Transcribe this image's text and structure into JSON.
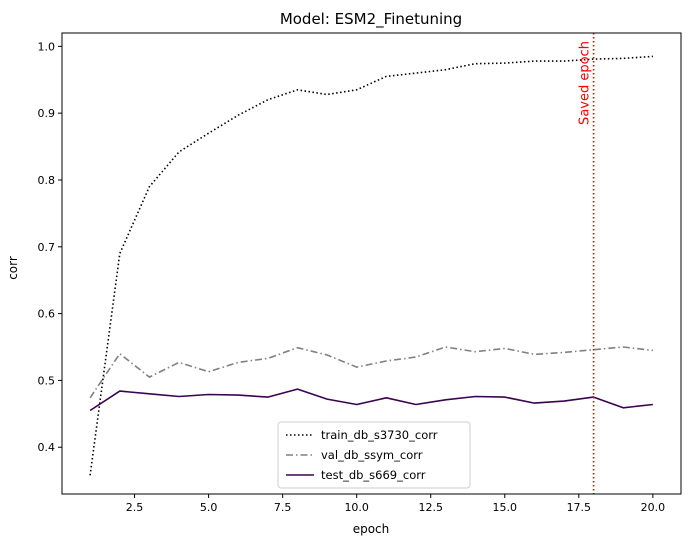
{
  "chart_data": {
    "type": "line",
    "title": "Model: ESM2_Finetuning",
    "xlabel": "epoch",
    "ylabel": "corr",
    "xlim": [
      0.05,
      20.95
    ],
    "ylim": [
      0.33,
      1.02
    ],
    "xticks": [
      2.5,
      5.0,
      7.5,
      10.0,
      12.5,
      15.0,
      17.5,
      20.0
    ],
    "xtick_labels": [
      "2.5",
      "5.0",
      "7.5",
      "10.0",
      "12.5",
      "15.0",
      "17.5",
      "20.0"
    ],
    "yticks": [
      0.4,
      0.5,
      0.6,
      0.7,
      0.8,
      0.9,
      1.0
    ],
    "ytick_labels": [
      "0.4",
      "0.5",
      "0.6",
      "0.7",
      "0.8",
      "0.9",
      "1.0"
    ],
    "grid": false,
    "legend_position": "bottom-center",
    "x": [
      1,
      2,
      3,
      4,
      5,
      6,
      7,
      8,
      9,
      10,
      11,
      12,
      13,
      14,
      15,
      16,
      17,
      18,
      19,
      20
    ],
    "series": [
      {
        "name": "train_db_s3730_corr",
        "color": "#000000",
        "dash": "dotted",
        "values": [
          0.358,
          0.69,
          0.79,
          0.842,
          0.87,
          0.897,
          0.92,
          0.935,
          0.928,
          0.935,
          0.955,
          0.96,
          0.965,
          0.974,
          0.975,
          0.978,
          0.978,
          0.981,
          0.982,
          0.985
        ]
      },
      {
        "name": "val_db_ssym_corr",
        "color": "#808080",
        "dash": "dashdot",
        "values": [
          0.474,
          0.54,
          0.505,
          0.527,
          0.513,
          0.527,
          0.533,
          0.549,
          0.538,
          0.52,
          0.529,
          0.535,
          0.55,
          0.543,
          0.548,
          0.539,
          0.542,
          0.546,
          0.55,
          0.545
        ]
      },
      {
        "name": "test_db_s669_corr",
        "color": "#3a0350",
        "dash": "solid",
        "values": [
          0.455,
          0.484,
          0.48,
          0.476,
          0.479,
          0.478,
          0.475,
          0.487,
          0.472,
          0.464,
          0.474,
          0.464,
          0.471,
          0.476,
          0.475,
          0.466,
          0.469,
          0.475,
          0.459,
          0.464
        ]
      }
    ],
    "annotations": [
      {
        "type": "vline",
        "x": 18,
        "color": "#ff0000",
        "dash": "dotted",
        "label": "Saved epoch"
      }
    ]
  }
}
